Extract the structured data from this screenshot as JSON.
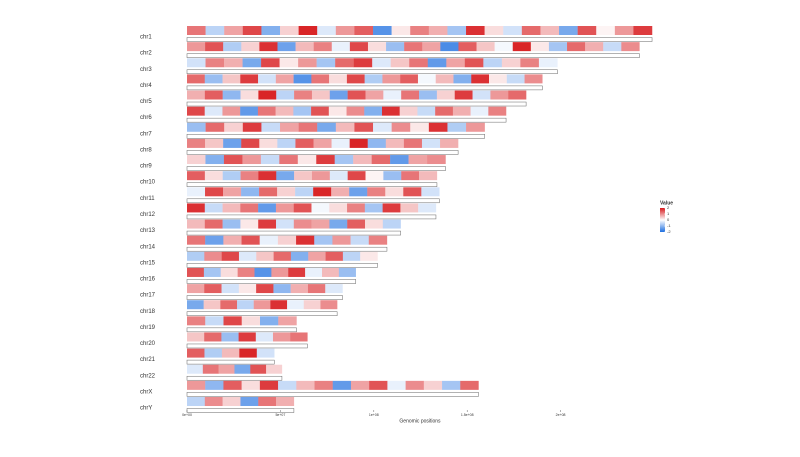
{
  "chart_data": {
    "type": "genome-heatmap",
    "x_label": "Genomic positions",
    "legend_title": "Value",
    "clim": [
      -2,
      2
    ],
    "legend_ticks": [
      2,
      1,
      0,
      -1,
      -2
    ],
    "colormap": {
      "low": "#1e6fe0",
      "mid": "#ffffff",
      "high": "#d7191c"
    },
    "xlim": [
      0,
      250000000
    ],
    "xticks": [
      {
        "value": 0,
        "label": "0e+00"
      },
      {
        "value": 50000000,
        "label": "5e+07"
      },
      {
        "value": 100000000,
        "label": "1e+08"
      },
      {
        "value": 150000000,
        "label": "1.5e+08"
      },
      {
        "value": 200000000,
        "label": "2e+08"
      }
    ],
    "series": [
      {
        "name": "chr1",
        "length": 248956422,
        "values": [
          1.2,
          -0.6,
          0.8,
          1.6,
          -1.1,
          0.4,
          1.9,
          -0.3,
          0.9,
          1.4,
          -1.5,
          0.2,
          1.1,
          0.7,
          -0.8,
          1.8,
          0.3,
          -0.4,
          1.3,
          0.6,
          -1.2,
          1.5,
          0.1,
          0.9,
          1.7
        ]
      },
      {
        "name": "chr2",
        "length": 242193529,
        "values": [
          0.9,
          1.5,
          -0.7,
          0.4,
          1.8,
          -1.3,
          0.6,
          1.1,
          -0.2,
          1.6,
          0.3,
          -0.9,
          1.2,
          0.8,
          -1.6,
          1.4,
          0.5,
          -0.1,
          1.9,
          0.2,
          -0.8,
          1.3,
          0.7,
          -0.5,
          1.0
        ]
      },
      {
        "name": "chr3",
        "length": 198295559,
        "values": [
          -0.4,
          1.1,
          0.7,
          -1.2,
          1.6,
          0.2,
          0.9,
          -0.8,
          1.3,
          1.7,
          -0.3,
          0.5,
          1.2,
          -1.4,
          0.8,
          1.5,
          -0.6,
          0.4,
          1.1,
          -0.2
        ]
      },
      {
        "name": "chr4",
        "length": 190214555,
        "values": [
          1.3,
          -0.9,
          0.5,
          1.7,
          -0.4,
          0.8,
          -1.5,
          1.2,
          0.3,
          1.6,
          -0.7,
          0.9,
          1.4,
          -0.1,
          0.6,
          -1.1,
          1.8,
          0.2,
          -0.5,
          1.0
        ]
      },
      {
        "name": "chr5",
        "length": 181538259,
        "values": [
          0.7,
          1.4,
          -1.0,
          0.3,
          1.9,
          -0.6,
          1.1,
          0.5,
          -1.3,
          1.5,
          0.8,
          -0.2,
          1.2,
          -0.9,
          0.4,
          1.7,
          -0.4,
          0.9,
          1.3
        ]
      },
      {
        "name": "chr6",
        "length": 170805979,
        "values": [
          1.6,
          -0.3,
          0.9,
          -1.4,
          1.2,
          0.6,
          -0.8,
          1.5,
          0.2,
          1.0,
          -1.1,
          1.8,
          0.4,
          -0.5,
          1.3,
          0.7,
          -0.2,
          1.1
        ]
      },
      {
        "name": "chr7",
        "length": 159345973,
        "values": [
          -0.9,
          1.3,
          0.4,
          1.7,
          -0.5,
          0.8,
          1.2,
          -1.2,
          0.6,
          1.5,
          -0.3,
          1.0,
          0.2,
          1.8,
          -0.7,
          0.9
        ]
      },
      {
        "name": "chr8",
        "length": 145138636,
        "values": [
          1.1,
          0.5,
          -1.3,
          1.6,
          0.3,
          -0.6,
          1.4,
          0.8,
          -0.2,
          1.9,
          -1.0,
          0.6,
          1.2,
          -0.4,
          0.7
        ]
      },
      {
        "name": "chr9",
        "length": 138394717,
        "values": [
          0.4,
          -1.1,
          1.5,
          0.9,
          -0.5,
          1.2,
          0.2,
          1.7,
          -0.8,
          0.6,
          1.3,
          -1.4,
          0.8,
          1.0
        ]
      },
      {
        "name": "chr10",
        "length": 133797422,
        "values": [
          1.4,
          0.3,
          -0.7,
          1.1,
          1.8,
          -1.2,
          0.5,
          0.9,
          -0.3,
          1.6,
          0.1,
          -0.9,
          1.2,
          0.6
        ]
      },
      {
        "name": "chr11",
        "length": 135086622,
        "values": [
          -0.2,
          1.6,
          0.8,
          -1.0,
          1.3,
          0.4,
          -0.6,
          1.9,
          0.7,
          -1.3,
          1.1,
          0.3,
          1.5,
          -0.4
        ]
      },
      {
        "name": "chr12",
        "length": 133275309,
        "values": [
          1.8,
          -0.5,
          0.6,
          1.2,
          -1.4,
          0.9,
          1.5,
          -0.1,
          0.3,
          1.1,
          -0.8,
          1.7,
          0.5,
          -0.3
        ]
      },
      {
        "name": "chr13",
        "length": 114364328,
        "values": [
          0.6,
          1.3,
          -0.9,
          0.2,
          1.7,
          -0.4,
          1.0,
          0.8,
          -1.2,
          1.4,
          0.3,
          -0.6
        ]
      },
      {
        "name": "chr14",
        "length": 107043718,
        "values": [
          1.2,
          -1.3,
          0.7,
          1.5,
          -0.2,
          0.4,
          1.8,
          -0.8,
          0.9,
          -0.5,
          1.1
        ]
      },
      {
        "name": "chr15",
        "length": 101991189,
        "values": [
          -0.7,
          1.0,
          1.6,
          -0.3,
          0.5,
          1.3,
          -1.1,
          0.8,
          1.4,
          -0.6,
          0.2
        ]
      },
      {
        "name": "chr16",
        "length": 90338345,
        "values": [
          1.5,
          -0.8,
          0.3,
          1.1,
          -1.5,
          0.9,
          1.7,
          -0.2,
          0.6,
          -0.9
        ]
      },
      {
        "name": "chr17",
        "length": 83257441,
        "values": [
          0.8,
          1.4,
          -0.4,
          0.2,
          1.6,
          -1.0,
          0.7,
          1.2,
          -0.3
        ]
      },
      {
        "name": "chr18",
        "length": 80373285,
        "values": [
          -1.2,
          0.5,
          1.3,
          -0.6,
          0.9,
          1.8,
          -0.2,
          0.4,
          1.0
        ]
      },
      {
        "name": "chr19",
        "length": 58617616,
        "values": [
          1.1,
          -0.5,
          1.6,
          0.3,
          -1.1,
          0.8
        ]
      },
      {
        "name": "chr20",
        "length": 64444167,
        "values": [
          0.5,
          1.3,
          -0.9,
          1.7,
          -0.3,
          0.9,
          1.2
        ]
      },
      {
        "name": "chr21",
        "length": 46709983,
        "values": [
          1.4,
          -0.7,
          0.6,
          1.9,
          -0.4
        ]
      },
      {
        "name": "chr22",
        "length": 50818468,
        "values": [
          -0.3,
          1.2,
          0.8,
          -1.2,
          1.5,
          0.4
        ]
      },
      {
        "name": "chrX",
        "length": 156040895,
        "values": [
          0.9,
          -1.0,
          1.4,
          0.3,
          1.7,
          -0.5,
          0.6,
          1.1,
          -1.4,
          0.8,
          1.5,
          -0.2,
          1.0,
          0.4,
          -0.8,
          1.3
        ]
      },
      {
        "name": "chrY",
        "length": 57227415,
        "values": [
          -0.6,
          1.0,
          0.4,
          -1.3,
          1.2,
          0.7
        ]
      }
    ]
  }
}
